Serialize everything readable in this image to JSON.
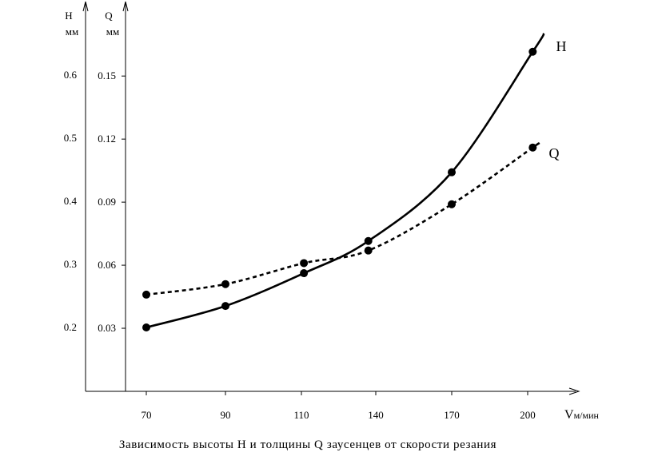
{
  "chart_data": {
    "type": "line",
    "caption": "Зависимость высоты Н и толщины Q заусенцев от скорости резания",
    "categories": [
      "70",
      "90",
      "110",
      "140",
      "170",
      "200"
    ],
    "x_axis": {
      "label_main": "V",
      "label_sub": "м/мин"
    },
    "y_axis_h": {
      "label": "Н",
      "unit": "мм",
      "ticks": [
        "0.2",
        "0.3",
        "0.4",
        "0.5",
        "0.6"
      ],
      "ylim": [
        0.1,
        0.7
      ]
    },
    "y_axis_q": {
      "label": "Q",
      "unit": "мм",
      "ticks": [
        "0.03",
        "0.06",
        "0.09",
        "0.12",
        "0.15"
      ],
      "ylim": [
        0.0,
        0.18
      ]
    },
    "series": [
      {
        "name": "Н",
        "axis": "H",
        "style": "solid",
        "x": [
          70,
          90,
          111,
          137,
          170,
          202
        ],
        "values": [
          0.2,
          0.234,
          0.286,
          0.337,
          0.446,
          0.637
        ]
      },
      {
        "name": "Q",
        "axis": "Q",
        "style": "dashed",
        "x": [
          70,
          90,
          111,
          137,
          170,
          202
        ],
        "values": [
          0.046,
          0.051,
          0.061,
          0.067,
          0.089,
          0.116
        ]
      }
    ],
    "grid": false
  }
}
